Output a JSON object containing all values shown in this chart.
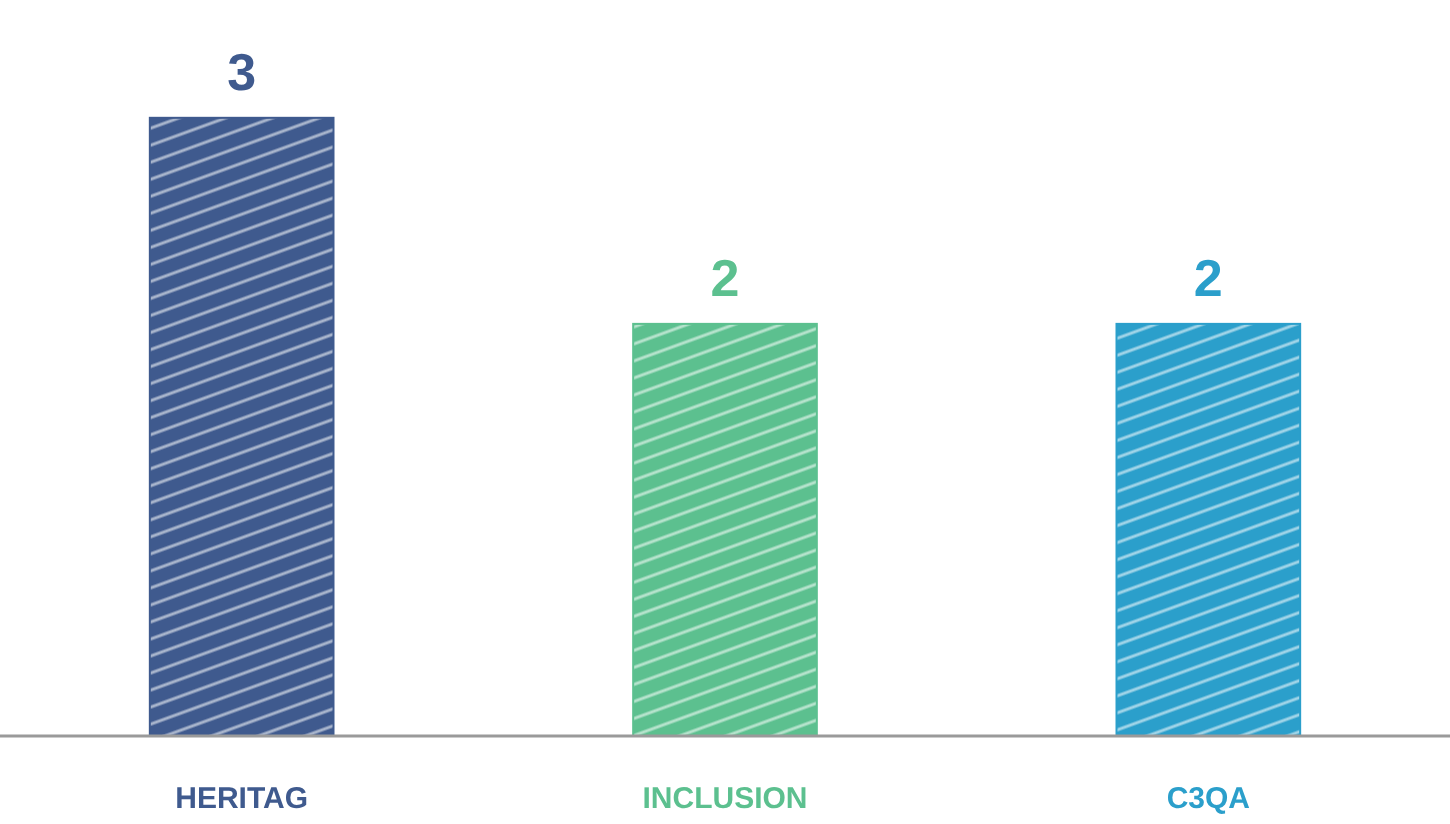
{
  "chart_data": {
    "type": "bar",
    "categories": [
      "HERITAG",
      "INCLUSION",
      "C3QA"
    ],
    "values": [
      3,
      2,
      2
    ],
    "colors": [
      "#3f5a8e",
      "#5cc08f",
      "#2b9fcb"
    ],
    "data_labels": true,
    "grid": false
  }
}
